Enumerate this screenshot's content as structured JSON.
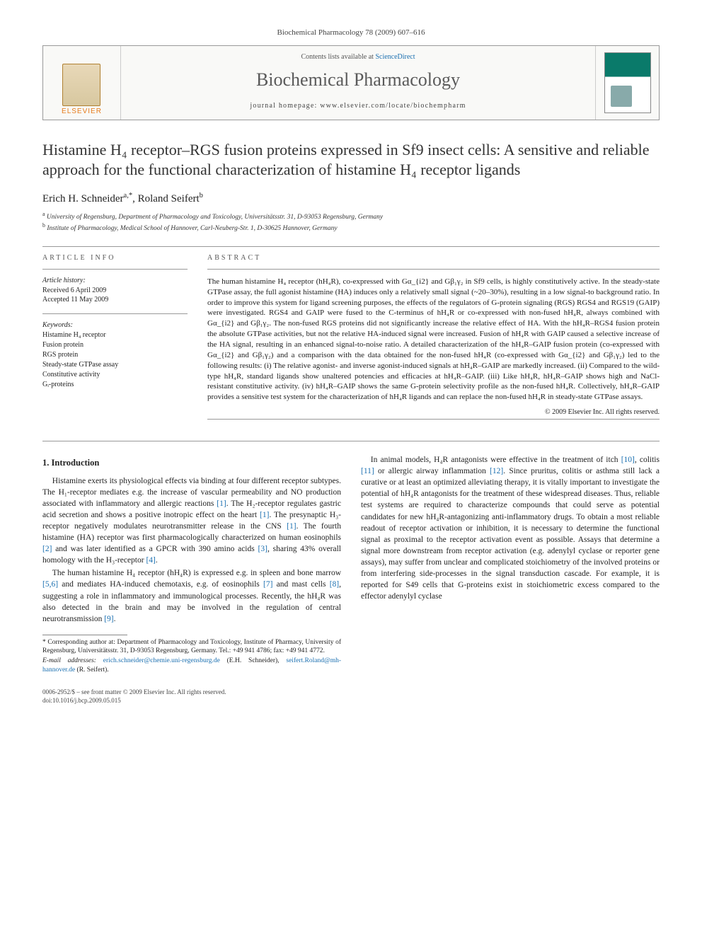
{
  "header_citation": "Biochemical Pharmacology 78 (2009) 607–616",
  "banner": {
    "contents_prefix": "Contents lists available at ",
    "contents_link": "ScienceDirect",
    "journal": "Biochemical Pharmacology",
    "homepage_prefix": "journal homepage: ",
    "homepage": "www.elsevier.com/locate/biochempharm",
    "publisher": "ELSEVIER"
  },
  "title": "Histamine H₄ receptor–RGS fusion proteins expressed in Sf9 insect cells: A sensitive and reliable approach for the functional characterization of histamine H₄ receptor ligands",
  "authors_html": "Erich H. Schneider",
  "author1_sup": "a,*",
  "author2": ", Roland Seifert",
  "author2_sup": "b",
  "affiliations": {
    "a": "University of Regensburg, Department of Pharmacology and Toxicology, Universitätsstr. 31, D-93053 Regensburg, Germany",
    "b": "Institute of Pharmacology, Medical School of Hannover, Carl-Neuberg-Str. 1, D-30625 Hannover, Germany"
  },
  "article_info": {
    "heading": "ARTICLE INFO",
    "history_label": "Article history:",
    "received": "Received 6 April 2009",
    "accepted": "Accepted 11 May 2009",
    "keywords_label": "Keywords:",
    "keywords": [
      "Histamine H₄ receptor",
      "Fusion protein",
      "RGS protein",
      "Steady-state GTPase assay",
      "Constitutive activity",
      "Gᵢ-proteins"
    ]
  },
  "abstract": {
    "heading": "ABSTRACT",
    "text": "The human histamine H₄ receptor (hH₄R), co-expressed with Gα_{i2} and Gβ₁γ₂ in Sf9 cells, is highly constitutively active. In the steady-state GTPase assay, the full agonist histamine (HA) induces only a relatively small signal (~20–30%), resulting in a low signal-to background ratio. In order to improve this system for ligand screening purposes, the effects of the regulators of G-protein signaling (RGS) RGS4 and RGS19 (GAIP) were investigated. RGS4 and GAIP were fused to the C-terminus of hH₄R or co-expressed with non-fused hH₄R, always combined with Gα_{i2} and Gβ₁γ₂. The non-fused RGS proteins did not significantly increase the relative effect of HA. With the hH₄R–RGS4 fusion protein the absolute GTPase activities, but not the relative HA-induced signal were increased. Fusion of hH₄R with GAIP caused a selective increase of the HA signal, resulting in an enhanced signal-to-noise ratio. A detailed characterization of the hH₄R–GAIP fusion protein (co-expressed with Gα_{i2} and Gβ₁γ₂) and a comparison with the data obtained for the non-fused hH₄R (co-expressed with Gα_{i2} and Gβ₁γ₂) led to the following results: (i) The relative agonist- and inverse agonist-induced signals at hH₄R–GAIP are markedly increased. (ii) Compared to the wild-type hH₄R, standard ligands show unaltered potencies and efficacies at hH₄R–GAIP. (iii) Like hH₄R, hH₄R–GAIP shows high and NaCl-resistant constitutive activity. (iv) hH₄R–GAIP shows the same G-protein selectivity profile as the non-fused hH₄R. Collectively, hH₄R–GAIP provides a sensitive test system for the characterization of hH₄R ligands and can replace the non-fused hH₄R in steady-state GTPase assays.",
    "copyright": "© 2009 Elsevier Inc. All rights reserved."
  },
  "section1": {
    "heading": "1. Introduction",
    "p1": "Histamine exerts its physiological effects via binding at four different receptor subtypes. The H₁-receptor mediates e.g. the increase of vascular permeability and NO production associated with inflammatory and allergic reactions [1]. The H₂-receptor regulates gastric acid secretion and shows a positive inotropic effect on the heart [1]. The presynaptic H₃-receptor negatively modulates neurotransmitter release in the CNS [1]. The fourth histamine (HA) receptor was first pharmacologically characterized on human eosinophils [2] and was later identified as a GPCR with 390 amino acids [3], sharing 43% overall homology with the H₃-receptor [4].",
    "p2": "The human histamine H₄ receptor (hH₄R) is expressed e.g. in spleen and bone marrow [5,6] and mediates HA-induced chemotaxis, e.g. of eosinophils [7] and mast cells [8], suggesting a role in inflammatory and immunological processes. Recently, the hH₄R was also detected in the brain and may be involved in the regulation of central neurotransmission [9].",
    "p3": "In animal models, H₄R antagonists were effective in the treatment of itch [10], colitis [11] or allergic airway inflammation [12]. Since pruritus, colitis or asthma still lack a curative or at least an optimized alleviating therapy, it is vitally important to investigate the potential of hH₄R antagonists for the treatment of these widespread diseases. Thus, reliable test systems are required to characterize compounds that could serve as potential candidates for new hH₄R-antagonizing anti-inflammatory drugs. To obtain a most reliable readout of receptor activation or inhibition, it is necessary to determine the functional signal as proximal to the receptor activation event as possible. Assays that determine a signal more downstream from receptor activation (e.g. adenylyl cyclase or reporter gene assays), may suffer from unclear and complicated stoichiometry of the involved proteins or from interfering side-processes in the signal transduction cascade. For example, it is reported for S49 cells that G-proteins exist in stoichiometric excess compared to the effector adenylyl cyclase"
  },
  "corresponding": {
    "star": "* ",
    "text": "Corresponding author at: Department of Pharmacology and Toxicology, Institute of Pharmacy, University of Regensburg, Universitätsstr. 31, D-93053 Regensburg, Germany. Tel.: +49 941 4786; fax: +49 941 4772.",
    "email_label": "E-mail addresses: ",
    "email1": "erich.schneider@chemie.uni-regensburg.de",
    "email1_who": " (E.H. Schneider), ",
    "email2": "seifert.Roland@mh-hannover.de",
    "email2_who": " (R. Seifert)."
  },
  "footer": {
    "line1": "0006-2952/$ – see front matter © 2009 Elsevier Inc. All rights reserved.",
    "line2": "doi:10.1016/j.bcp.2009.05.015"
  }
}
